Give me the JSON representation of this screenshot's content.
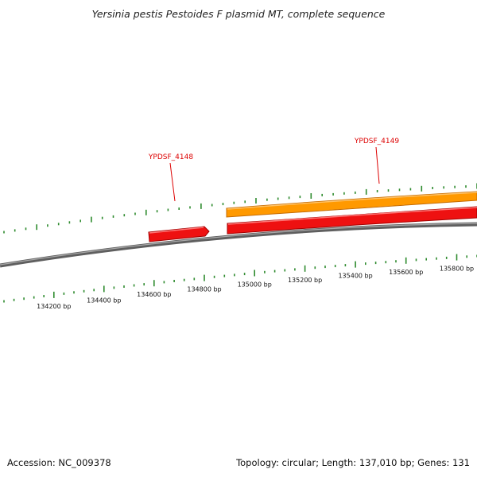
{
  "title": "Yersinia pestis Pestoides F plasmid MT, complete sequence",
  "footer": {
    "accession": "Accession: NC_009378",
    "summary": "Topology: circular; Length: 137,010 bp; Genes: 131"
  },
  "colors": {
    "tick_green": "#2e8b2e",
    "backbone": "#7a7a7a",
    "reverse_gene": "#ee1111",
    "forward_gene": "#ff9900",
    "gene_label": "#dd0000"
  },
  "ticks": {
    "labels": [
      "134200 bp",
      "134400 bp",
      "134600 bp",
      "134800 bp",
      "135000 bp",
      "135200 bp",
      "135400 bp",
      "135600 bp",
      "135800 bp"
    ]
  },
  "genes": [
    {
      "label": "YPDSF_4148",
      "strand": "reverse"
    },
    {
      "label": "YPDSF_4149",
      "strand": "forward"
    },
    {
      "label": "",
      "strand": "reverse"
    }
  ]
}
